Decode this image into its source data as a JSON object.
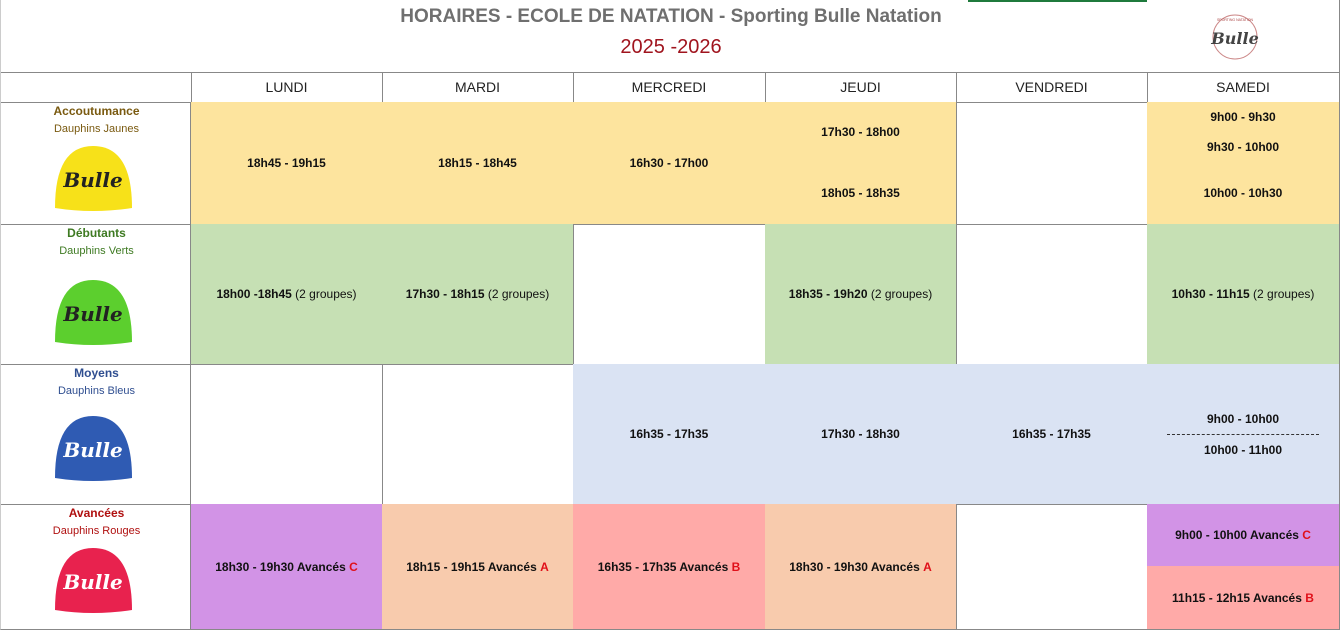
{
  "title": {
    "line1": "HORAIRES - ECOLE DE NATATION - Sporting Bulle Natation",
    "line2": "2025 -2026"
  },
  "logo": {
    "text": "Bulle",
    "ring_text": "SPORTING NATATION"
  },
  "days": [
    "LUNDI",
    "MARDI",
    "MERCREDI",
    "JEUDI",
    "VENDREDI",
    "SAMEDI"
  ],
  "levels": [
    {
      "name": "Accoutumance",
      "sub": "Dauphins Jaunes",
      "cap_color": "#f7e119",
      "color": "#7a5a10",
      "cap_text": "Bulle"
    },
    {
      "name": "Débutants",
      "sub": "Dauphins Verts",
      "cap_color": "#5ccf2e",
      "color": "#3e7a22",
      "cap_text": "Bulle"
    },
    {
      "name": "Moyens",
      "sub": "Dauphins Bleus",
      "cap_color": "#2f5bb3",
      "color": "#2f4e90",
      "cap_text": "Bulle"
    },
    {
      "name": "Avancées",
      "sub": "Dauphins Rouges",
      "cap_color": "#e8224e",
      "color": "#b01010",
      "cap_text": "Bulle"
    }
  ],
  "accoutumance": {
    "lundi": "18h45 - 19h15",
    "mardi": "18h15 - 18h45",
    "mercredi": "16h30 - 17h00",
    "jeudi_1": "17h30 - 18h00",
    "jeudi_2": "18h05 - 18h35",
    "samedi_1": "9h00 - 9h30",
    "samedi_2": "9h30 - 10h00",
    "samedi_3": "10h00 - 10h30"
  },
  "debutants": {
    "lundi": "18h00 -18h45",
    "mardi": "17h30 - 18h15",
    "jeudi": "18h35 - 19h20",
    "samedi": "10h30 - 11h15",
    "groups_note": "(2 groupes)"
  },
  "moyens": {
    "mercredi": "16h35 - 17h35",
    "jeudi": "17h30 - 18h30",
    "vendredi": "16h35 - 17h35",
    "samedi_1": "9h00 - 10h00",
    "samedi_2": "10h00 - 11h00"
  },
  "avancees": {
    "lundi": "18h30 - 19h30 Avancés",
    "lundi_grp": "C",
    "mardi": "18h15 - 19h15 Avancés",
    "mardi_grp": "A",
    "mercredi": "16h35 - 17h35 Avancés",
    "mercredi_grp": "B",
    "jeudi": "18h30 - 19h30 Avancés",
    "jeudi_grp": "A",
    "samedi_1": "9h00 - 10h00 Avancés",
    "samedi_1_grp": "C",
    "samedi_2": "11h15 - 12h15 Avancés",
    "samedi_2_grp": "B"
  }
}
